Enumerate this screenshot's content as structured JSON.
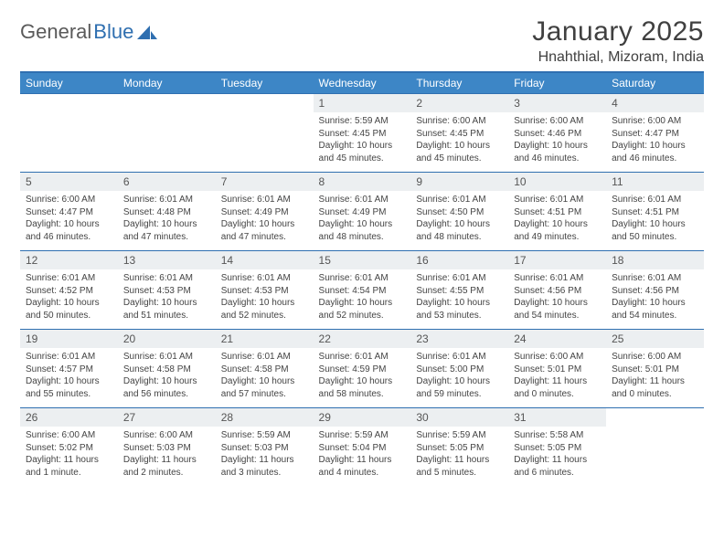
{
  "colors": {
    "header_bar": "#3d86c6",
    "rule": "#2f6fb0",
    "daynum_bg": "#eceff1",
    "text": "#404040",
    "logo_gray": "#5a5a5a",
    "logo_blue": "#2f6fb0",
    "background": "#ffffff"
  },
  "logo": {
    "word1": "General",
    "word2": "Blue"
  },
  "title": "January 2025",
  "location": "Hnahthial, Mizoram, India",
  "day_headers": [
    "Sunday",
    "Monday",
    "Tuesday",
    "Wednesday",
    "Thursday",
    "Friday",
    "Saturday"
  ],
  "weeks": [
    [
      {
        "d": "",
        "sr": "",
        "ss": "",
        "dl": ""
      },
      {
        "d": "",
        "sr": "",
        "ss": "",
        "dl": ""
      },
      {
        "d": "",
        "sr": "",
        "ss": "",
        "dl": ""
      },
      {
        "d": "1",
        "sr": "Sunrise: 5:59 AM",
        "ss": "Sunset: 4:45 PM",
        "dl": "Daylight: 10 hours and 45 minutes."
      },
      {
        "d": "2",
        "sr": "Sunrise: 6:00 AM",
        "ss": "Sunset: 4:45 PM",
        "dl": "Daylight: 10 hours and 45 minutes."
      },
      {
        "d": "3",
        "sr": "Sunrise: 6:00 AM",
        "ss": "Sunset: 4:46 PM",
        "dl": "Daylight: 10 hours and 46 minutes."
      },
      {
        "d": "4",
        "sr": "Sunrise: 6:00 AM",
        "ss": "Sunset: 4:47 PM",
        "dl": "Daylight: 10 hours and 46 minutes."
      }
    ],
    [
      {
        "d": "5",
        "sr": "Sunrise: 6:00 AM",
        "ss": "Sunset: 4:47 PM",
        "dl": "Daylight: 10 hours and 46 minutes."
      },
      {
        "d": "6",
        "sr": "Sunrise: 6:01 AM",
        "ss": "Sunset: 4:48 PM",
        "dl": "Daylight: 10 hours and 47 minutes."
      },
      {
        "d": "7",
        "sr": "Sunrise: 6:01 AM",
        "ss": "Sunset: 4:49 PM",
        "dl": "Daylight: 10 hours and 47 minutes."
      },
      {
        "d": "8",
        "sr": "Sunrise: 6:01 AM",
        "ss": "Sunset: 4:49 PM",
        "dl": "Daylight: 10 hours and 48 minutes."
      },
      {
        "d": "9",
        "sr": "Sunrise: 6:01 AM",
        "ss": "Sunset: 4:50 PM",
        "dl": "Daylight: 10 hours and 48 minutes."
      },
      {
        "d": "10",
        "sr": "Sunrise: 6:01 AM",
        "ss": "Sunset: 4:51 PM",
        "dl": "Daylight: 10 hours and 49 minutes."
      },
      {
        "d": "11",
        "sr": "Sunrise: 6:01 AM",
        "ss": "Sunset: 4:51 PM",
        "dl": "Daylight: 10 hours and 50 minutes."
      }
    ],
    [
      {
        "d": "12",
        "sr": "Sunrise: 6:01 AM",
        "ss": "Sunset: 4:52 PM",
        "dl": "Daylight: 10 hours and 50 minutes."
      },
      {
        "d": "13",
        "sr": "Sunrise: 6:01 AM",
        "ss": "Sunset: 4:53 PM",
        "dl": "Daylight: 10 hours and 51 minutes."
      },
      {
        "d": "14",
        "sr": "Sunrise: 6:01 AM",
        "ss": "Sunset: 4:53 PM",
        "dl": "Daylight: 10 hours and 52 minutes."
      },
      {
        "d": "15",
        "sr": "Sunrise: 6:01 AM",
        "ss": "Sunset: 4:54 PM",
        "dl": "Daylight: 10 hours and 52 minutes."
      },
      {
        "d": "16",
        "sr": "Sunrise: 6:01 AM",
        "ss": "Sunset: 4:55 PM",
        "dl": "Daylight: 10 hours and 53 minutes."
      },
      {
        "d": "17",
        "sr": "Sunrise: 6:01 AM",
        "ss": "Sunset: 4:56 PM",
        "dl": "Daylight: 10 hours and 54 minutes."
      },
      {
        "d": "18",
        "sr": "Sunrise: 6:01 AM",
        "ss": "Sunset: 4:56 PM",
        "dl": "Daylight: 10 hours and 54 minutes."
      }
    ],
    [
      {
        "d": "19",
        "sr": "Sunrise: 6:01 AM",
        "ss": "Sunset: 4:57 PM",
        "dl": "Daylight: 10 hours and 55 minutes."
      },
      {
        "d": "20",
        "sr": "Sunrise: 6:01 AM",
        "ss": "Sunset: 4:58 PM",
        "dl": "Daylight: 10 hours and 56 minutes."
      },
      {
        "d": "21",
        "sr": "Sunrise: 6:01 AM",
        "ss": "Sunset: 4:58 PM",
        "dl": "Daylight: 10 hours and 57 minutes."
      },
      {
        "d": "22",
        "sr": "Sunrise: 6:01 AM",
        "ss": "Sunset: 4:59 PM",
        "dl": "Daylight: 10 hours and 58 minutes."
      },
      {
        "d": "23",
        "sr": "Sunrise: 6:01 AM",
        "ss": "Sunset: 5:00 PM",
        "dl": "Daylight: 10 hours and 59 minutes."
      },
      {
        "d": "24",
        "sr": "Sunrise: 6:00 AM",
        "ss": "Sunset: 5:01 PM",
        "dl": "Daylight: 11 hours and 0 minutes."
      },
      {
        "d": "25",
        "sr": "Sunrise: 6:00 AM",
        "ss": "Sunset: 5:01 PM",
        "dl": "Daylight: 11 hours and 0 minutes."
      }
    ],
    [
      {
        "d": "26",
        "sr": "Sunrise: 6:00 AM",
        "ss": "Sunset: 5:02 PM",
        "dl": "Daylight: 11 hours and 1 minute."
      },
      {
        "d": "27",
        "sr": "Sunrise: 6:00 AM",
        "ss": "Sunset: 5:03 PM",
        "dl": "Daylight: 11 hours and 2 minutes."
      },
      {
        "d": "28",
        "sr": "Sunrise: 5:59 AM",
        "ss": "Sunset: 5:03 PM",
        "dl": "Daylight: 11 hours and 3 minutes."
      },
      {
        "d": "29",
        "sr": "Sunrise: 5:59 AM",
        "ss": "Sunset: 5:04 PM",
        "dl": "Daylight: 11 hours and 4 minutes."
      },
      {
        "d": "30",
        "sr": "Sunrise: 5:59 AM",
        "ss": "Sunset: 5:05 PM",
        "dl": "Daylight: 11 hours and 5 minutes."
      },
      {
        "d": "31",
        "sr": "Sunrise: 5:58 AM",
        "ss": "Sunset: 5:05 PM",
        "dl": "Daylight: 11 hours and 6 minutes."
      },
      {
        "d": "",
        "sr": "",
        "ss": "",
        "dl": ""
      }
    ]
  ]
}
